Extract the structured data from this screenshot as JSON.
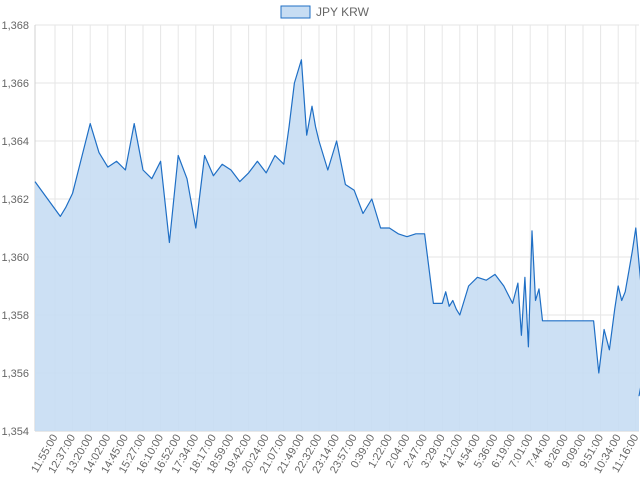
{
  "chart_data": {
    "type": "area",
    "title": "",
    "xlabel": "",
    "ylabel": "",
    "ylim": [
      1354,
      1368
    ],
    "yticks": [
      1354,
      1356,
      1358,
      1360,
      1362,
      1364,
      1366,
      1368
    ],
    "ytick_labels": [
      "1,354",
      "1,356",
      "1,358",
      "1,360",
      "1,362",
      "1,364",
      "1,366",
      "1,368"
    ],
    "legend": {
      "position": "top-center"
    },
    "grid": true,
    "colors": {
      "line": "#1f6fc5",
      "fill": "#c7ddf3",
      "grid": "#e6e6e6"
    },
    "categories": [
      "11:55:00",
      "12:37:00",
      "13:20:00",
      "14:02:00",
      "14:45:00",
      "15:27:00",
      "16:10:00",
      "16:52:00",
      "17:34:00",
      "18:17:00",
      "18:59:00",
      "19:42:00",
      "20:24:00",
      "21:07:00",
      "21:49:00",
      "22:32:00",
      "23:14:00",
      "23:57:00",
      "0:39:00",
      "1:22:00",
      "2:04:00",
      "2:47:00",
      "3:29:00",
      "4:12:00",
      "4:54:00",
      "5:36:00",
      "6:19:00",
      "7:01:00",
      "7:44:00",
      "8:26:00",
      "9:09:00",
      "9:51:00",
      "10:34:00",
      "11:16:00"
    ],
    "series": [
      {
        "name": "JPY KRW",
        "x": [
          0,
          0.3,
          0.6,
          1.0,
          1.5,
          2.0,
          2.5,
          3.0,
          3.5,
          4.0,
          4.5,
          5.0,
          5.5,
          6.0,
          6.5,
          7.0,
          7.5,
          8.0,
          8.5,
          9.0,
          9.5,
          10.0,
          10.5,
          11.0,
          11.5,
          12.0,
          12.5,
          13.0,
          13.3,
          13.6,
          14.0,
          14.3,
          14.6,
          14.8,
          15.0,
          15.5,
          16.0,
          16.5,
          17.0,
          17.5,
          18.0,
          18.5,
          19.0,
          19.5,
          20.0,
          20.5,
          21.0,
          21.5,
          22.0,
          22.2,
          22.4,
          22.6,
          22.8,
          23.0,
          23.5,
          24.0,
          24.5,
          25.0,
          25.5,
          26.0,
          26.3,
          26.5,
          26.7,
          26.9,
          27.1,
          27.3,
          27.5,
          27.7,
          28.0,
          28.5,
          29.0,
          29.2,
          29.4,
          29.6,
          29.8,
          30.0,
          30.3,
          30.6,
          30.9,
          31.2,
          31.5,
          31.8,
          32.0,
          32.2,
          32.4,
          32.6,
          32.8,
          33.0,
          33.3,
          33.6,
          33.7
        ],
        "values": [
          1362.6,
          1361.4,
          1361.7,
          1362.2,
          1363.4,
          1364.6,
          1363.6,
          1363.1,
          1363.3,
          1363.0,
          1364.6,
          1363.0,
          1362.7,
          1363.3,
          1360.5,
          1363.5,
          1362.7,
          1361.0,
          1363.5,
          1362.8,
          1363.2,
          1363.0,
          1362.6,
          1362.9,
          1363.3,
          1362.9,
          1363.5,
          1363.2,
          1364.5,
          1366.0,
          1366.8,
          1364.2,
          1365.2,
          1364.5,
          1364.0,
          1363.0,
          1364.0,
          1362.5,
          1362.3,
          1361.5,
          1362.0,
          1361.0,
          1361.0,
          1360.8,
          1360.7,
          1360.8,
          1360.8,
          1358.4,
          1358.4,
          1358.8,
          1358.3,
          1358.5,
          1358.2,
          1358.0,
          1359.0,
          1359.3,
          1359.2,
          1359.4,
          1359.0,
          1358.4,
          1359.1,
          1357.3,
          1359.3,
          1356.9,
          1360.9,
          1358.5,
          1358.9,
          1357.8,
          1357.8,
          1357.8,
          1357.8,
          1357.8,
          1357.8,
          1357.8,
          1357.8,
          1357.8,
          1357.8,
          1357.8,
          1356.0,
          1357.5,
          1356.8,
          1358.2,
          1359.0,
          1358.5,
          1358.8,
          1359.5,
          1360.2,
          1361.0,
          1359.0,
          1356.6,
          1355.2
        ]
      }
    ]
  }
}
